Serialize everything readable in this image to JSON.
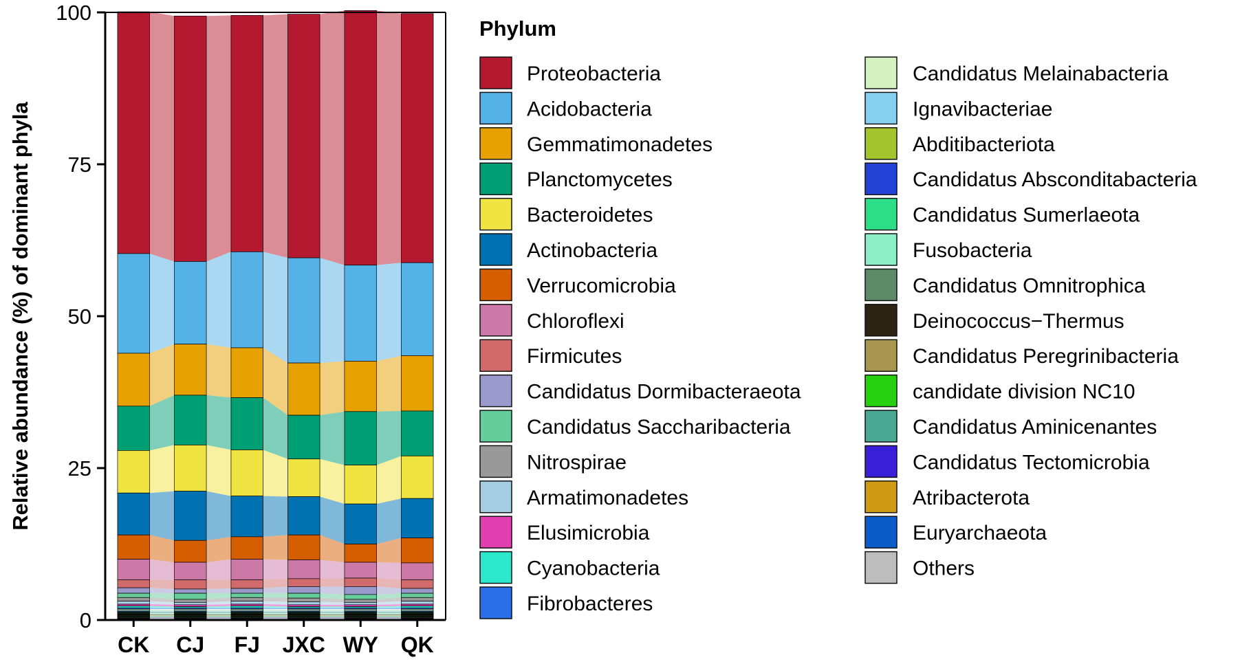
{
  "chart_data": {
    "type": "bar",
    "stacked": true,
    "alluvial_links": true,
    "title": "",
    "xlabel": "",
    "ylabel": "Relative abundance (%) of dominant phyla",
    "ylim": [
      0,
      100
    ],
    "yticks": [
      "0",
      "25",
      "50",
      "75",
      "100"
    ],
    "grid": false,
    "legend_title": "Phylum",
    "legend_position": "right",
    "categories": [
      "CK",
      "CJ",
      "FJ",
      "JXC",
      "WY",
      "QK"
    ],
    "series": [
      {
        "name": "Proteobacteria",
        "color": "#B5192F",
        "values": [
          39.8,
          40.4,
          38.9,
          40.1,
          41.9,
          41.0
        ]
      },
      {
        "name": "Acidobacteria",
        "color": "#55B2E6",
        "values": [
          16.4,
          13.6,
          15.8,
          17.3,
          15.8,
          15.3
        ]
      },
      {
        "name": "Gemmatimonadetes",
        "color": "#E6A000",
        "values": [
          8.7,
          8.4,
          8.2,
          8.6,
          8.3,
          9.1
        ]
      },
      {
        "name": "Planctomycetes",
        "color": "#009E73",
        "values": [
          7.3,
          8.2,
          8.6,
          7.2,
          8.8,
          7.4
        ]
      },
      {
        "name": "Bacteroidetes",
        "color": "#F0E442",
        "values": [
          7.0,
          7.6,
          7.6,
          6.2,
          6.4,
          7.0
        ]
      },
      {
        "name": "Actinobacteria",
        "color": "#0072B2",
        "values": [
          6.9,
          8.1,
          6.7,
          6.3,
          6.6,
          6.5
        ]
      },
      {
        "name": "Verrucomicrobia",
        "color": "#D55E00",
        "values": [
          4.0,
          3.6,
          3.7,
          4.1,
          3.0,
          4.1
        ]
      },
      {
        "name": "Chloroflexi",
        "color": "#CC79A7",
        "values": [
          3.4,
          2.9,
          3.4,
          3.1,
          2.6,
          2.8
        ]
      },
      {
        "name": "Firmicutes",
        "color": "#D16B6B",
        "values": [
          1.3,
          1.5,
          1.4,
          1.3,
          1.4,
          1.4
        ]
      },
      {
        "name": "Candidatus Dormibacteraeota",
        "color": "#9999CC",
        "values": [
          0.9,
          0.7,
          0.8,
          1.1,
          1.3,
          0.8
        ]
      },
      {
        "name": "Candidatus Saccharibacteria",
        "color": "#66CC99",
        "values": [
          0.7,
          1.0,
          0.7,
          0.8,
          0.8,
          0.7
        ]
      },
      {
        "name": "Nitrospirae",
        "color": "#999999",
        "values": [
          0.6,
          0.5,
          0.6,
          0.6,
          0.5,
          0.6
        ]
      },
      {
        "name": "Armatimonadetes",
        "color": "#A6CEE3",
        "values": [
          0.5,
          0.4,
          0.5,
          0.5,
          0.4,
          0.5
        ]
      },
      {
        "name": "Elusimicrobia",
        "color": "#E040B0",
        "values": [
          0.3,
          0.3,
          0.3,
          0.3,
          0.3,
          0.3
        ]
      },
      {
        "name": "Cyanobacteria",
        "color": "#2EE8CC",
        "values": [
          0.3,
          0.2,
          0.3,
          0.2,
          0.2,
          0.3
        ]
      },
      {
        "name": "Fibrobacteres",
        "color": "#2A6FE8",
        "values": [
          0.2,
          0.2,
          0.2,
          0.2,
          0.2,
          0.2
        ]
      },
      {
        "name": "Candidatus Melainabacteria",
        "color": "#D5F2C0",
        "values": [
          0.2,
          0.2,
          0.2,
          0.2,
          0.2,
          0.2
        ]
      },
      {
        "name": "Ignavibacteriae",
        "color": "#87D0F0",
        "values": [
          0.2,
          0.2,
          0.2,
          0.2,
          0.2,
          0.2
        ]
      },
      {
        "name": "Abditibacteriota",
        "color": "#A4C42E",
        "values": [
          0.1,
          0.1,
          0.1,
          0.1,
          0.1,
          0.1
        ]
      },
      {
        "name": "Candidatus Absconditabacteria",
        "color": "#2443D6",
        "values": [
          0.1,
          0.1,
          0.1,
          0.1,
          0.1,
          0.1
        ]
      },
      {
        "name": "Candidatus Sumerlaeota",
        "color": "#2EDD88",
        "values": [
          0.1,
          0.1,
          0.1,
          0.1,
          0.1,
          0.1
        ]
      },
      {
        "name": "Fusobacteria",
        "color": "#8CEFC8",
        "values": [
          0.1,
          0.1,
          0.1,
          0.1,
          0.1,
          0.1
        ]
      },
      {
        "name": "Candidatus Omnitrophica",
        "color": "#5E8A6A",
        "values": [
          0.1,
          0.1,
          0.1,
          0.1,
          0.1,
          0.1
        ]
      },
      {
        "name": "Deinococcus−Thermus",
        "color": "#2E2416",
        "values": [
          0.1,
          0.1,
          0.1,
          0.1,
          0.1,
          0.1
        ]
      },
      {
        "name": "Candidatus Peregrinibacteria",
        "color": "#A89650",
        "values": [
          0.1,
          0.1,
          0.1,
          0.1,
          0.1,
          0.1
        ]
      },
      {
        "name": "candidate division NC10",
        "color": "#26D00E",
        "values": [
          0.1,
          0.1,
          0.1,
          0.1,
          0.1,
          0.1
        ]
      },
      {
        "name": "Candidatus Aminicenantes",
        "color": "#4AA893",
        "values": [
          0.1,
          0.1,
          0.1,
          0.1,
          0.1,
          0.1
        ]
      },
      {
        "name": "Candidatus Tectomicrobia",
        "color": "#3A1FD8",
        "values": [
          0.1,
          0.1,
          0.1,
          0.1,
          0.1,
          0.1
        ]
      },
      {
        "name": "Atribacterota",
        "color": "#D09A14",
        "values": [
          0.1,
          0.1,
          0.1,
          0.1,
          0.1,
          0.1
        ]
      },
      {
        "name": "Euryarchaeota",
        "color": "#0A5CC8",
        "values": [
          0.1,
          0.1,
          0.1,
          0.1,
          0.1,
          0.1
        ]
      },
      {
        "name": "Others",
        "color": "#BDBDBD",
        "values": [
          0.2,
          0.2,
          0.2,
          0.2,
          0.2,
          0.2
        ]
      }
    ]
  }
}
